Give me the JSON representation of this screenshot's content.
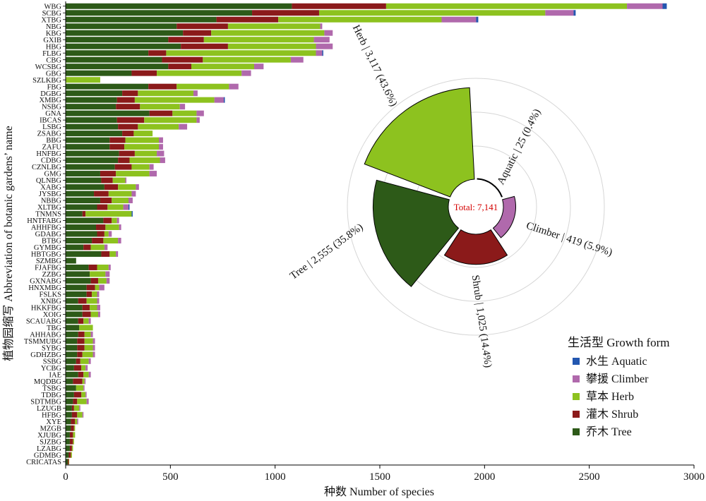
{
  "chart_data": [
    {
      "type": "bar",
      "orientation": "horizontal",
      "stacked": true,
      "xlabel": "种数 Number of species",
      "ylabel": "植物园缩写 Abbreviation of botanic gardens’ name",
      "xlim": [
        0,
        3000
      ],
      "xticks": [
        0,
        500,
        1000,
        1500,
        2000,
        2500,
        3000
      ],
      "grid": false,
      "series_order": [
        "Tree",
        "Shrub",
        "Herb",
        "Climber",
        "Aquatic"
      ],
      "colors": {
        "Tree": "#2d5a18",
        "Shrub": "#8b1a1a",
        "Herb": "#8dc21f",
        "Climber": "#b069ac",
        "Aquatic": "#2357b0"
      },
      "categories": [
        "WBG",
        "SCBG",
        "XTBG",
        "NBG",
        "KBG",
        "GXIB",
        "HBG",
        "FLBG",
        "CBG",
        "WCSBG",
        "GBG",
        "SZLKBG",
        "FBG",
        "DGBG",
        "XMBG",
        "NSBG",
        "GNA",
        "IBCAS",
        "LSBG",
        "ZSABG",
        "BBG",
        "ZAFU",
        "HNFBG",
        "CDBG",
        "CZNLBG",
        "GMG",
        "QLNBG",
        "XABG",
        "JYSBG",
        "NBBG",
        "XLTBG",
        "TNMNS",
        "HNTFABG",
        "AHHFBG",
        "GDABG",
        "BTBG",
        "GYMBG",
        "HBTGBG",
        "SZMBG",
        "FJAFBG",
        "ZZBG",
        "GXNABG",
        "HNXMBG",
        "FSLKS",
        "XNBG",
        "HKKFBG",
        "XOIG",
        "SCAUABG",
        "TBG",
        "AHHABG",
        "TSMMUBG",
        "SYBG",
        "GDHZBG",
        "SSBG",
        "YCBG",
        "IAE",
        "MQDBG",
        "TSBG",
        "TDBG",
        "SDTMBG",
        "LZUGB",
        "HFBG",
        "XYE",
        "MZGB",
        "XJUBG",
        "SJZBG",
        "LZABG",
        "GDMBG",
        "CRICATAS"
      ],
      "series": [
        {
          "name": "Tree",
          "values": [
            1080,
            890,
            720,
            530,
            560,
            490,
            550,
            395,
            460,
            490,
            315,
            0,
            395,
            270,
            245,
            240,
            400,
            245,
            250,
            270,
            210,
            210,
            255,
            250,
            235,
            165,
            170,
            185,
            135,
            165,
            150,
            80,
            180,
            145,
            150,
            125,
            85,
            170,
            50,
            110,
            115,
            120,
            100,
            100,
            60,
            80,
            80,
            60,
            65,
            60,
            55,
            55,
            55,
            50,
            40,
            60,
            35,
            50,
            40,
            35,
            30,
            30,
            25,
            25,
            20,
            20,
            20,
            15,
            10
          ]
        },
        {
          "name": "Shrub",
          "values": [
            450,
            320,
            295,
            245,
            135,
            170,
            225,
            85,
            195,
            110,
            120,
            0,
            135,
            75,
            85,
            115,
            110,
            130,
            95,
            55,
            75,
            70,
            75,
            55,
            80,
            75,
            55,
            65,
            70,
            55,
            50,
            15,
            40,
            45,
            35,
            55,
            35,
            40,
            0,
            40,
            0,
            35,
            40,
            25,
            40,
            35,
            40,
            25,
            0,
            30,
            35,
            35,
            25,
            20,
            35,
            25,
            45,
            0,
            35,
            20,
            10,
            25,
            20,
            15,
            15,
            15,
            10,
            10,
            5
          ]
        },
        {
          "name": "Herb",
          "values": [
            1150,
            1080,
            780,
            440,
            540,
            525,
            420,
            715,
            420,
            300,
            405,
            165,
            250,
            265,
            380,
            190,
            115,
            250,
            195,
            90,
            160,
            165,
            105,
            145,
            85,
            160,
            60,
            85,
            110,
            80,
            75,
            220,
            25,
            65,
            20,
            70,
            65,
            30,
            0,
            55,
            75,
            40,
            20,
            25,
            50,
            35,
            35,
            25,
            65,
            30,
            40,
            40,
            50,
            40,
            20,
            25,
            10,
            35,
            20,
            45,
            25,
            25,
            10,
            5,
            10,
            5,
            5,
            5,
            2
          ]
        },
        {
          "name": "Climber",
          "values": [
            170,
            135,
            165,
            10,
            40,
            75,
            80,
            30,
            60,
            45,
            45,
            0,
            45,
            20,
            45,
            25,
            35,
            15,
            40,
            0,
            20,
            20,
            35,
            25,
            20,
            35,
            5,
            15,
            20,
            20,
            25,
            0,
            10,
            10,
            15,
            15,
            15,
            10,
            0,
            10,
            20,
            15,
            25,
            10,
            10,
            15,
            10,
            10,
            0,
            10,
            10,
            10,
            10,
            10,
            10,
            10,
            5,
            5,
            5,
            10,
            5,
            5,
            5,
            0,
            0,
            0,
            0,
            0,
            0
          ]
        },
        {
          "name": "Aquatic",
          "values": [
            20,
            10,
            10,
            0,
            0,
            0,
            0,
            5,
            0,
            0,
            0,
            0,
            0,
            0,
            5,
            0,
            0,
            0,
            0,
            0,
            0,
            0,
            0,
            0,
            0,
            0,
            0,
            0,
            0,
            0,
            5,
            5,
            0,
            0,
            0,
            0,
            0,
            0,
            0,
            0,
            0,
            0,
            0,
            0,
            0,
            0,
            0,
            0,
            0,
            0,
            0,
            0,
            0,
            0,
            0,
            0,
            0,
            0,
            0,
            0,
            0,
            0,
            0,
            0,
            0,
            0,
            0,
            0,
            0
          ]
        }
      ]
    },
    {
      "type": "pie",
      "variant": "polar-area",
      "center_label": "Total: 7,141",
      "slices": [
        {
          "name": "Herb",
          "value": 3117,
          "label": "Herb | 3,117 (43.6%)",
          "color": "#8dc21f"
        },
        {
          "name": "Aquatic",
          "value": 25,
          "label": "Aquatic | 25 (0.4%)",
          "color": "#2357b0"
        },
        {
          "name": "Climber",
          "value": 419,
          "label": "Climber | 419 (5.9%)",
          "color": "#b069ac"
        },
        {
          "name": "Shrub",
          "value": 1025,
          "label": "Shrub | 1,025 (14.4%)",
          "color": "#8b1a1a"
        },
        {
          "name": "Tree",
          "value": 2555,
          "label": "Tree | 2,555 (35.8%)",
          "color": "#2d5a18"
        }
      ],
      "legend": {
        "title": "生活型 Growth form",
        "placement": "bottom-right",
        "items": [
          {
            "label": "水生 Aquatic",
            "color": "#2357b0"
          },
          {
            "label": "攀援 Climber",
            "color": "#b069ac"
          },
          {
            "label": "草本 Herb",
            "color": "#8dc21f"
          },
          {
            "label": "灌木 Shrub",
            "color": "#8b1a1a"
          },
          {
            "label": "乔木 Tree",
            "color": "#2d5a18"
          }
        ]
      }
    }
  ]
}
